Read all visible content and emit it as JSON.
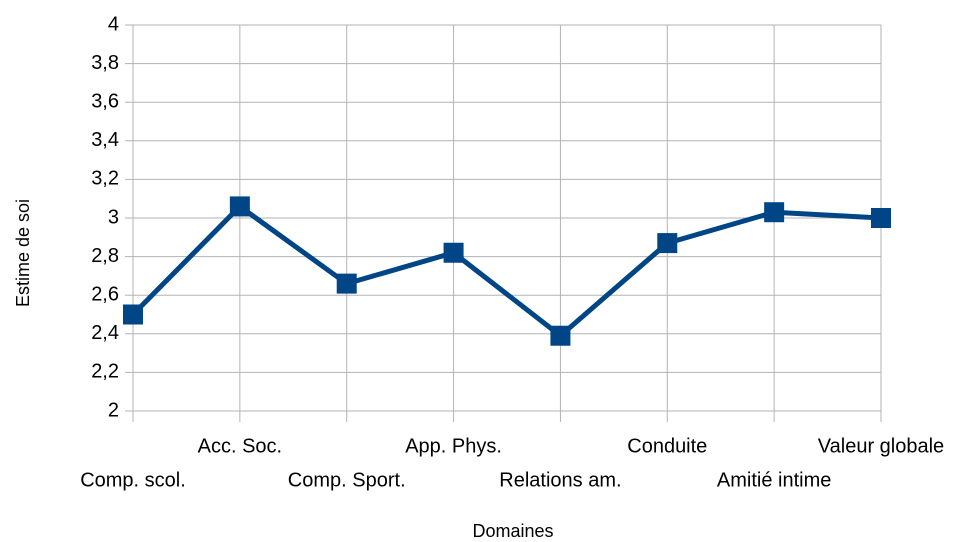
{
  "chart_data": {
    "type": "line",
    "categories": [
      "Comp. scol.",
      "Acc. Soc.",
      "Comp. Sport.",
      "App. Phys.",
      "Relations am.",
      "Conduite",
      "Amitié intime",
      "Valeur globale"
    ],
    "series": [
      {
        "name": "Estime de soi",
        "color": "#004586",
        "values": [
          2.5,
          3.06,
          2.66,
          2.82,
          2.39,
          2.87,
          3.03,
          3.0
        ]
      }
    ],
    "ylim": [
      2,
      4
    ],
    "yticks": [
      2,
      {
        "value": 2.2,
        "label": "2,2"
      },
      {
        "value": 2.4,
        "label": "2,4"
      },
      {
        "value": 2.6,
        "label": "2,6"
      },
      {
        "value": 2.8,
        "label": "2,8"
      },
      3,
      {
        "value": 3.2,
        "label": "3,2"
      },
      {
        "value": 3.4,
        "label": "3,4"
      },
      {
        "value": 3.6,
        "label": "3,6"
      },
      {
        "value": 3.8,
        "label": "3,8"
      },
      4
    ],
    "xlabel": "Domaines",
    "ylabel": "Estime de soi",
    "grid": true
  }
}
